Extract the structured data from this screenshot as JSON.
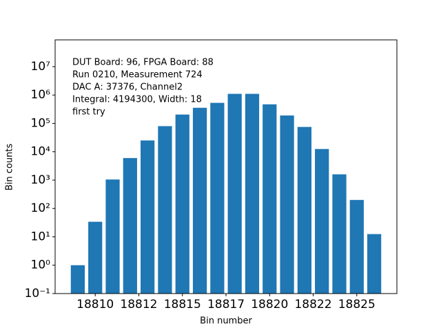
{
  "chart_data": {
    "type": "bar",
    "annotation": [
      "DUT Board: 96, FPGA Board: 88",
      "Run 0210, Measurement 724",
      "DAC A: 37376, Channel2",
      "Integral: 4194300, Width: 18",
      "first try"
    ],
    "xlabel": "Bin number",
    "ylabel": "Bin counts",
    "x": [
      18809,
      18810,
      18811,
      18812,
      18813,
      18814,
      18815,
      18816,
      18817,
      18818,
      18819,
      18820,
      18821,
      18822,
      18823,
      18824,
      18825,
      18826
    ],
    "values": [
      1,
      34,
      1050,
      6000,
      25000,
      80000,
      205000,
      355000,
      530000,
      1100000,
      1100000,
      470000,
      190000,
      75000,
      12500,
      1600,
      200,
      12.5
    ],
    "color": "#1f77b4",
    "xlim": [
      18807.7,
      18827.3
    ],
    "xticks": [
      18810,
      {
        "value": 18812.5,
        "label": "18812"
      },
      18815,
      {
        "value": 18817.5,
        "label": "18817"
      },
      18820,
      {
        "value": 18822.5,
        "label": "18822"
      },
      18825
    ],
    "ylim": [
      0.1,
      88000000
    ],
    "log_y": true,
    "yticks": [
      {
        "value": 0.1,
        "label": "10⁻¹"
      },
      {
        "value": 1,
        "label": "10⁰"
      },
      {
        "value": 10,
        "label": "10¹"
      },
      {
        "value": 100,
        "label": "10²"
      },
      {
        "value": 1000,
        "label": "10³"
      },
      {
        "value": 10000,
        "label": "10⁴"
      },
      {
        "value": 100000,
        "label": "10⁵"
      },
      {
        "value": 1000000,
        "label": "10⁶"
      },
      {
        "value": 10000000,
        "label": "10⁷"
      }
    ],
    "grid": false
  }
}
